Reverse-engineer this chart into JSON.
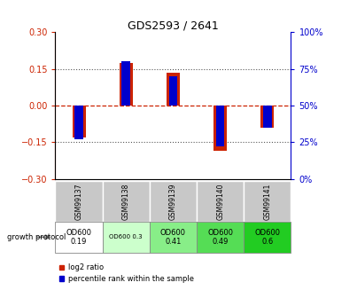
{
  "title": "GDS2593 / 2641",
  "samples": [
    "GSM99137",
    "GSM99138",
    "GSM99139",
    "GSM99140",
    "GSM99141"
  ],
  "log2_ratio": [
    -0.13,
    0.175,
    0.135,
    -0.185,
    -0.09
  ],
  "percentile_rank": [
    27,
    80,
    70,
    22,
    35
  ],
  "ylim_left": [
    -0.3,
    0.3
  ],
  "ylim_right": [
    0,
    100
  ],
  "yticks_left": [
    -0.3,
    -0.15,
    0,
    0.15,
    0.3
  ],
  "yticks_right": [
    0,
    25,
    50,
    75,
    100
  ],
  "red_color": "#cc2200",
  "blue_color": "#0000cc",
  "zero_line_color": "#cc2200",
  "dotted_line_color": "#555555",
  "growth_protocol_labels": [
    "OD600\n0.19",
    "OD600 0.3",
    "OD600\n0.41",
    "OD600\n0.49",
    "OD600\n0.6"
  ],
  "growth_protocol_colors": [
    "#ffffff",
    "#ccffcc",
    "#88ee88",
    "#55dd55",
    "#22cc22"
  ],
  "sample_bg_color": "#c8c8c8",
  "left_axis_color": "#cc2200",
  "right_axis_color": "#0000cc",
  "right_tick_labels": [
    "0%",
    "25%",
    "50%",
    "75%",
    "100%"
  ]
}
